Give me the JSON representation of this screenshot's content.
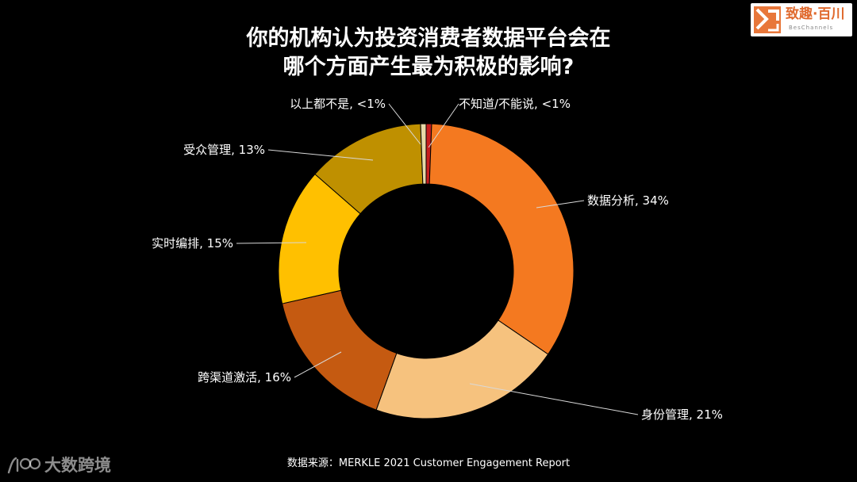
{
  "header": {
    "title_line1": "你的机构认为投资消费者数据平台会在",
    "title_line2": "哪个方面产生最为积极的影响?"
  },
  "logo": {
    "name": "致趣·百川",
    "sub": "BesChannels"
  },
  "chart_data": {
    "type": "pie",
    "donut": true,
    "slices": [
      {
        "label": "不知道/不能说, <1%",
        "name": "不知道/不能说",
        "value": 0.6,
        "color": "#c81e1e"
      },
      {
        "label": "数据分析, 34%",
        "name": "数据分析",
        "value": 34,
        "color": "#f47920"
      },
      {
        "label": "身份管理, 21%",
        "name": "身份管理",
        "value": 21,
        "color": "#f6c27e"
      },
      {
        "label": "跨渠道激活, 16%",
        "name": "跨渠道激活",
        "value": 16,
        "color": "#c55a11"
      },
      {
        "label": "实时编排, 15%",
        "name": "实时编排",
        "value": 15,
        "color": "#ffc000"
      },
      {
        "label": "受众管理, 13%",
        "name": "受众管理",
        "value": 13,
        "color": "#bf9000"
      },
      {
        "label": "以上都不是, <1%",
        "name": "以上都不是",
        "value": 0.6,
        "color": "#e8d9a8"
      }
    ]
  },
  "footer": {
    "source": "数据来源：MERKLE 2021 Customer Engagement Report",
    "watermark": "大数跨境"
  }
}
